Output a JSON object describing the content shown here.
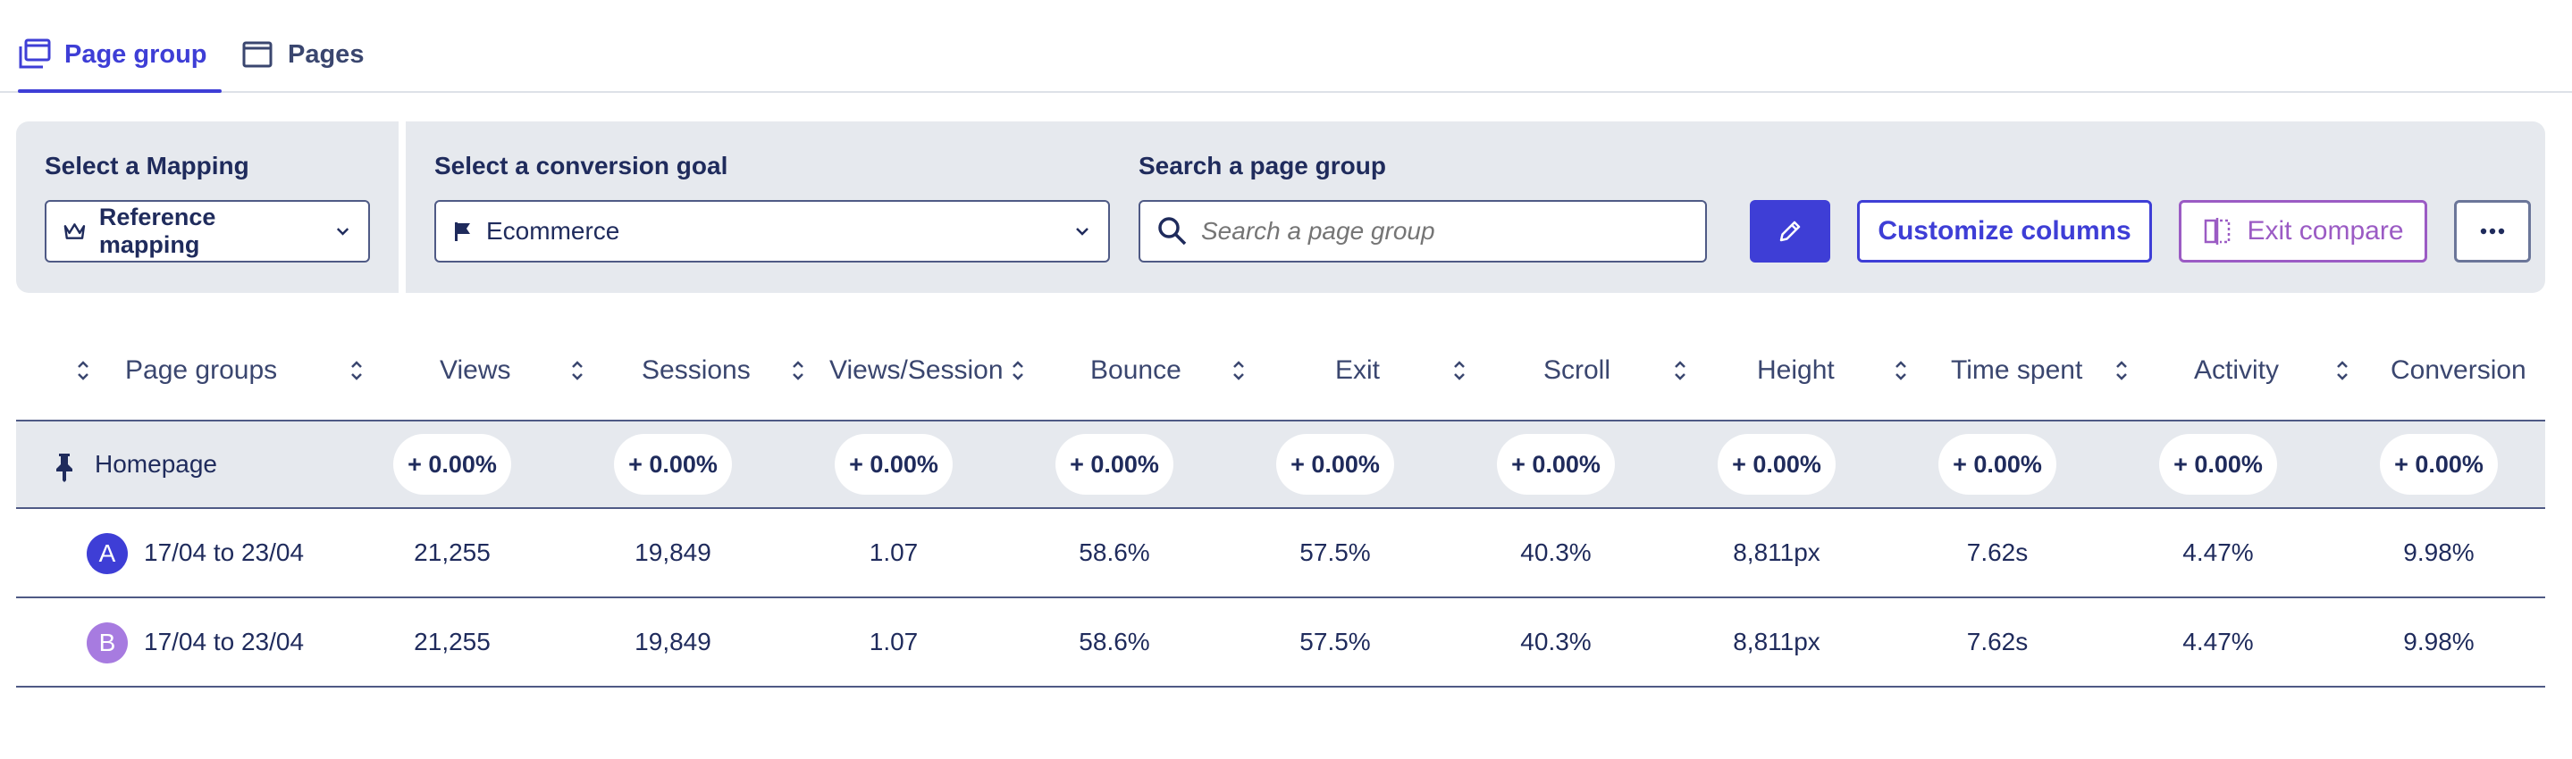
{
  "tabs": [
    {
      "label": "Page group",
      "active": true,
      "icon": "page-group-icon"
    },
    {
      "label": "Pages",
      "active": false,
      "icon": "page-icon"
    }
  ],
  "filters": {
    "mapping": {
      "label": "Select a Mapping",
      "value": "Reference mapping",
      "icon": "crown-icon"
    },
    "goal": {
      "label": "Select a conversion goal",
      "value": "Ecommerce",
      "icon": "flag-icon"
    },
    "search": {
      "label": "Search a page group",
      "placeholder": "Search a page group",
      "value": ""
    },
    "buttons": {
      "edit_icon": "pencil-icon",
      "customize": "Customize columns",
      "exit_compare": "Exit compare",
      "more_icon": "more-icon"
    }
  },
  "colors": {
    "accent": "#3e3ed6",
    "compare": "#9b5bc4",
    "period_a": "#3e3ed6",
    "period_b": "#a77be0",
    "panel_bg": "#e6e9ee",
    "text": "#1f2b5c"
  },
  "table": {
    "columns": [
      "Page groups",
      "Views",
      "Sessions",
      "Views/Session",
      "Bounce",
      "Exit",
      "Scroll",
      "Height",
      "Time spent",
      "Activity",
      "Conversion"
    ],
    "group": {
      "name": "Homepage",
      "icon": "pin-icon",
      "deltas": [
        "+ 0.00%",
        "+ 0.00%",
        "+ 0.00%",
        "+ 0.00%",
        "+ 0.00%",
        "+ 0.00%",
        "+ 0.00%",
        "+ 0.00%",
        "+ 0.00%",
        "+ 0.00%"
      ]
    },
    "rows": [
      {
        "badge": "A",
        "period": "17/04 to 23/04",
        "values": [
          "21,255",
          "19,849",
          "1.07",
          "58.6%",
          "57.5%",
          "40.3%",
          "8,811px",
          "7.62s",
          "4.47%",
          "9.98%"
        ]
      },
      {
        "badge": "B",
        "period": "17/04 to 23/04",
        "values": [
          "21,255",
          "19,849",
          "1.07",
          "58.6%",
          "57.5%",
          "40.3%",
          "8,811px",
          "7.62s",
          "4.47%",
          "9.98%"
        ]
      }
    ]
  }
}
